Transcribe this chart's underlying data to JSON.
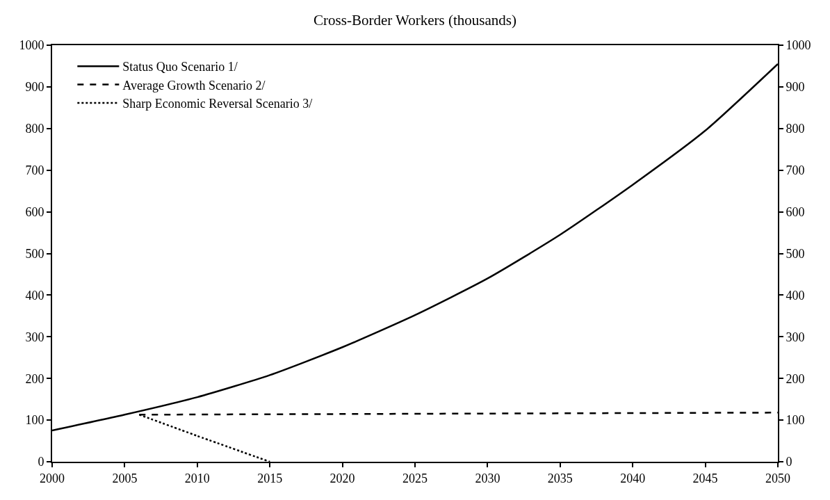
{
  "chart_data": {
    "type": "line",
    "title": "Cross-Border Workers (thousands)",
    "series": [
      {
        "name": "Status Quo Scenario 1/",
        "color": "#000000",
        "line_style": "solid",
        "x": [
          2000,
          2005,
          2010,
          2015,
          2020,
          2025,
          2030,
          2035,
          2040,
          2045,
          2050
        ],
        "values": [
          75,
          113,
          155,
          208,
          275,
          352,
          440,
          545,
          665,
          795,
          955
        ]
      },
      {
        "name": "Average Growth Scenario 2/",
        "color": "#000000",
        "line_style": "dashed",
        "x": [
          2006,
          2050
        ],
        "values": [
          113,
          118
        ]
      },
      {
        "name": "Sharp Economic Reversal Scenario 3/",
        "color": "#000000",
        "line_style": "dotted",
        "x": [
          2006,
          2010,
          2015
        ],
        "values": [
          113,
          62,
          0
        ]
      }
    ],
    "xlim": [
      2000,
      2050
    ],
    "xticks": [
      2000,
      2005,
      2010,
      2015,
      2020,
      2025,
      2030,
      2035,
      2040,
      2045,
      2050
    ],
    "ylim": [
      0,
      1000
    ],
    "yticks": [
      0,
      100,
      200,
      300,
      400,
      500,
      600,
      700,
      800,
      900,
      1000
    ],
    "y2lim": [
      0,
      1000
    ],
    "y2ticks": [
      0,
      100,
      200,
      300,
      400,
      500,
      600,
      700,
      800,
      900,
      1000
    ],
    "legend": "top left",
    "marker": "none"
  }
}
